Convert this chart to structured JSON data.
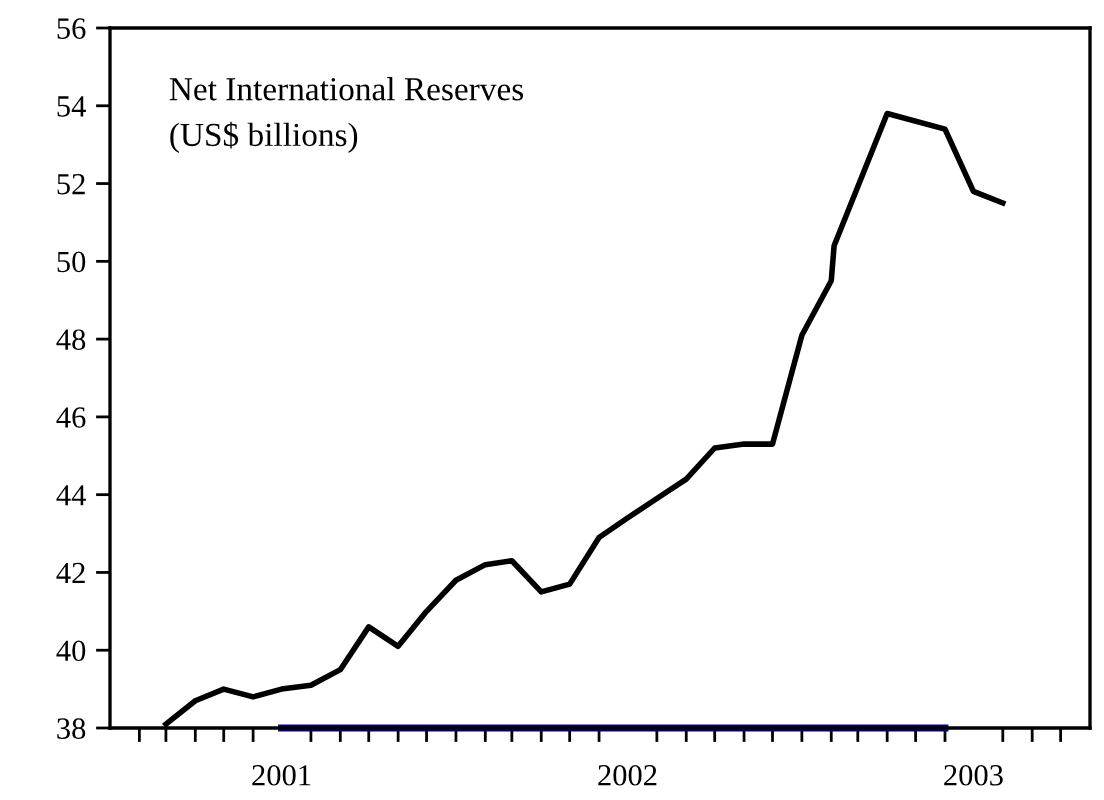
{
  "chart_data": {
    "type": "line",
    "title": "Net International Reserves\n(US$ billions)",
    "xlim": [
      "2001-01-01",
      "2003-11-01"
    ],
    "xticks": [
      {
        "value": "2001-02",
        "label": null
      },
      {
        "value": "2001-03",
        "label": null
      },
      {
        "value": "2001-04",
        "label": null
      },
      {
        "value": "2001-05",
        "label": null
      },
      {
        "value": "2001-06",
        "label": null
      },
      {
        "value": "2001-07",
        "label": "2001"
      },
      {
        "value": "2001-08",
        "label": null
      },
      {
        "value": "2001-09",
        "label": null
      },
      {
        "value": "2001-10",
        "label": null
      },
      {
        "value": "2001-11",
        "label": null
      },
      {
        "value": "2001-12",
        "label": null
      },
      {
        "value": "2002-01",
        "label": null
      },
      {
        "value": "2002-02",
        "label": null
      },
      {
        "value": "2002-03",
        "label": null
      },
      {
        "value": "2002-04",
        "label": null
      },
      {
        "value": "2002-05",
        "label": null
      },
      {
        "value": "2002-06",
        "label": null
      },
      {
        "value": "2002-07",
        "label": "2002"
      },
      {
        "value": "2002-08",
        "label": null
      },
      {
        "value": "2002-09",
        "label": null
      },
      {
        "value": "2002-10",
        "label": null
      },
      {
        "value": "2002-11",
        "label": null
      },
      {
        "value": "2002-12",
        "label": null
      },
      {
        "value": "2003-01",
        "label": null
      },
      {
        "value": "2003-02",
        "label": null
      },
      {
        "value": "2003-03",
        "label": null
      },
      {
        "value": "2003-04",
        "label": null
      },
      {
        "value": "2003-05",
        "label": null
      },
      {
        "value": "2003-06",
        "label": null
      },
      {
        "value": "2003-07",
        "label": "2003"
      },
      {
        "value": "2003-08",
        "label": null
      },
      {
        "value": "2003-09",
        "label": null
      },
      {
        "value": "2003-10",
        "label": null
      }
    ],
    "ylim": [
      38,
      56
    ],
    "yticks": [
      38,
      40,
      42,
      44,
      46,
      48,
      50,
      52,
      54,
      56
    ],
    "series": [
      {
        "color": "#000000",
        "x": [
          "2001-03",
          "2001-04",
          "2001-05",
          "2001-06",
          "2001-07",
          "2001-08",
          "2001-09",
          "2001-10",
          "2001-11",
          "2001-12",
          "2002-01",
          "2002-02",
          "2002-03",
          "2002-04",
          "2002-05",
          "2002-06",
          "2002-07",
          "2002-08",
          "2002-09",
          "2002-10",
          "2002-11",
          "2002-12",
          "2003-01",
          "2003-02-01",
          "2003-02-04",
          "2003-04",
          "2003-06",
          "2003-07",
          "2003-08"
        ],
        "values": [
          38.1,
          38.7,
          39.0,
          38.8,
          39.0,
          39.1,
          39.5,
          40.6,
          40.1,
          41.0,
          41.8,
          42.2,
          42.3,
          41.5,
          41.7,
          42.9,
          43.4,
          43.9,
          44.4,
          45.2,
          45.3,
          45.3,
          48.1,
          49.5,
          50.4,
          53.8,
          53.4,
          51.8,
          51.5
        ]
      },
      {
        "color": "#000080",
        "x": [
          "2001-07",
          "2003-06"
        ],
        "values": [
          38,
          38
        ]
      }
    ]
  }
}
